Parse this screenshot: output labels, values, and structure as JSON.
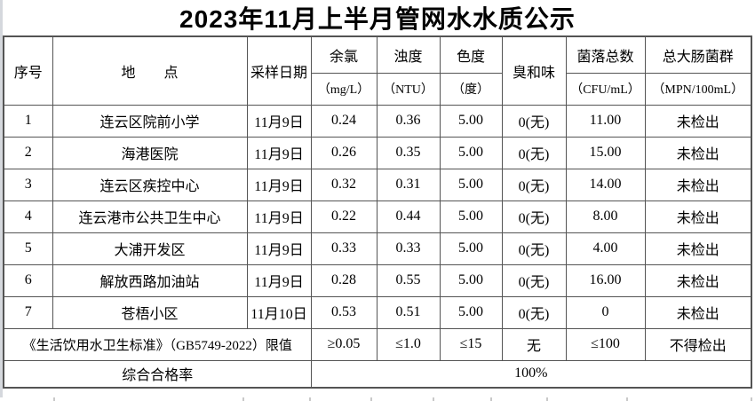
{
  "title": "2023年11月上半月管网水水质公示",
  "table": {
    "columns": [
      {
        "label": "序号",
        "unit": null
      },
      {
        "label": "地　　点",
        "unit": null
      },
      {
        "label": "采样日期",
        "unit": null
      },
      {
        "label": "余氯",
        "unit": "（mg/L）"
      },
      {
        "label": "浊度",
        "unit": "（NTU）"
      },
      {
        "label": "色度",
        "unit": "（度）"
      },
      {
        "label": "臭和味",
        "unit": null
      },
      {
        "label": "菌落总数",
        "unit": "（CFU/mL）"
      },
      {
        "label": "总大肠菌群",
        "unit": "（MPN/100mL）"
      }
    ],
    "rows": [
      [
        "1",
        "连云区院前小学",
        "11月9日",
        "0.24",
        "0.36",
        "5.00",
        "0(无)",
        "11.00",
        "未检出"
      ],
      [
        "2",
        "海港医院",
        "11月9日",
        "0.26",
        "0.35",
        "5.00",
        "0(无)",
        "15.00",
        "未检出"
      ],
      [
        "3",
        "连云区疾控中心",
        "11月9日",
        "0.32",
        "0.31",
        "5.00",
        "0(无)",
        "14.00",
        "未检出"
      ],
      [
        "4",
        "连云港市公共卫生中心",
        "11月9日",
        "0.22",
        "0.44",
        "5.00",
        "0(无)",
        "8.00",
        "未检出"
      ],
      [
        "5",
        "大浦开发区",
        "11月9日",
        "0.33",
        "0.33",
        "5.00",
        "0(无)",
        "4.00",
        "未检出"
      ],
      [
        "6",
        "解放西路加油站",
        "11月9日",
        "0.28",
        "0.55",
        "5.00",
        "0(无)",
        "16.00",
        "未检出"
      ],
      [
        "7",
        "苍梧小区",
        "11月10日",
        "0.53",
        "0.51",
        "5.00",
        "0(无)",
        "0",
        "未检出"
      ]
    ],
    "limit_row": {
      "label": "《生活饮用水卫生标准》（GB5749-2022）限值",
      "values": [
        "≥0.05",
        "≤1.0",
        "≤15",
        "无",
        "≤100",
        "不得检出"
      ]
    },
    "rate_row": {
      "label": "综合合格率",
      "value": "100%"
    }
  },
  "colors": {
    "border": "#545454",
    "text": "#000000",
    "background": "#ffffff",
    "stub": "#c9c9c9",
    "edge_strip": "#d5d8dd"
  }
}
